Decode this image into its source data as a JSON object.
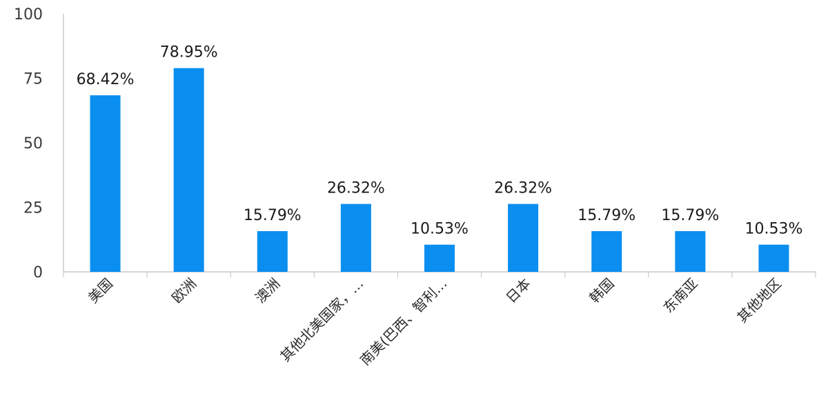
{
  "chart_data": {
    "type": "bar",
    "title": "",
    "xlabel": "",
    "ylabel": "",
    "ylim": [
      0,
      100
    ],
    "yticks": [
      0,
      25,
      50,
      75,
      100
    ],
    "grid": false,
    "legend": "none",
    "colors": {
      "bar": "#0a8ef0",
      "axis": "#c9c9c9"
    },
    "categories": [
      "美国",
      "欧洲",
      "澳洲",
      "其他北美国家，…",
      "南美(巴西、智利…",
      "日本",
      "韩国",
      "东南亚",
      "其他地区"
    ],
    "values": [
      68.42,
      78.95,
      15.79,
      26.32,
      10.53,
      26.32,
      15.79,
      15.79,
      10.53
    ],
    "data_labels": [
      "68.42%",
      "78.95%",
      "15.79%",
      "26.32%",
      "10.53%",
      "26.32%",
      "15.79%",
      "15.79%",
      "10.53%"
    ]
  }
}
